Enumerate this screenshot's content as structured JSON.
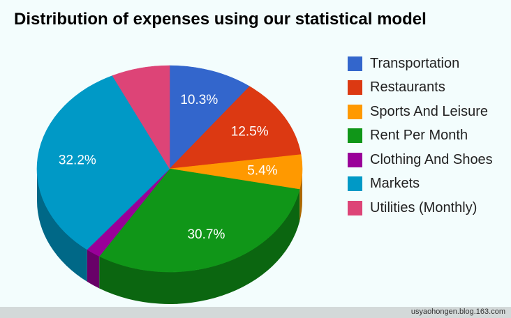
{
  "chart_data": {
    "type": "pie",
    "title": "Distribution of expenses using our statistical model",
    "legend_position": "right",
    "three_d": true,
    "series": [
      {
        "name": "Transportation",
        "value": 10.3,
        "label": "10.3%",
        "color": "#3366cc"
      },
      {
        "name": "Restaurants",
        "value": 12.5,
        "label": "12.5%",
        "color": "#dc3912"
      },
      {
        "name": "Sports And Leisure",
        "value": 5.4,
        "label": "5.4%",
        "color": "#ff9900"
      },
      {
        "name": "Rent Per Month",
        "value": 30.7,
        "label": "30.7%",
        "color": "#109618"
      },
      {
        "name": "Clothing And Shoes",
        "value": 1.8,
        "label": "",
        "color": "#990099"
      },
      {
        "name": "Markets",
        "value": 32.2,
        "label": "32.2%",
        "color": "#0099c6"
      },
      {
        "name": "Utilities (Monthly)",
        "value": 7.1,
        "label": "",
        "color": "#dd4477"
      }
    ]
  },
  "watermark": "usyaohongen.blog.163.com"
}
